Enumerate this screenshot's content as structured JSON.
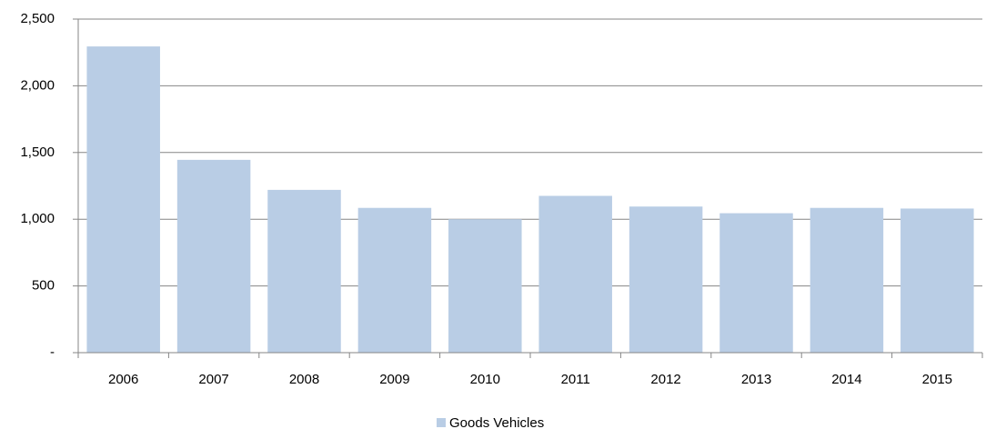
{
  "chart_data": {
    "type": "bar",
    "categories": [
      "2006",
      "2007",
      "2008",
      "2009",
      "2010",
      "2011",
      "2012",
      "2013",
      "2014",
      "2015"
    ],
    "series": [
      {
        "name": "Goods Vehicles",
        "color": "#b9cde5",
        "values": [
          2295,
          1445,
          1220,
          1085,
          1000,
          1175,
          1095,
          1045,
          1085,
          1080
        ]
      }
    ],
    "ylim": [
      0,
      2500
    ],
    "yticks": [
      {
        "value": 0,
        "label": "-"
      },
      500,
      {
        "value": 1000,
        "label": "1,000"
      },
      {
        "value": 1500,
        "label": "1,500"
      },
      {
        "value": 2000,
        "label": "2,000"
      },
      {
        "value": 2500,
        "label": "2,500"
      }
    ],
    "grid": true
  }
}
